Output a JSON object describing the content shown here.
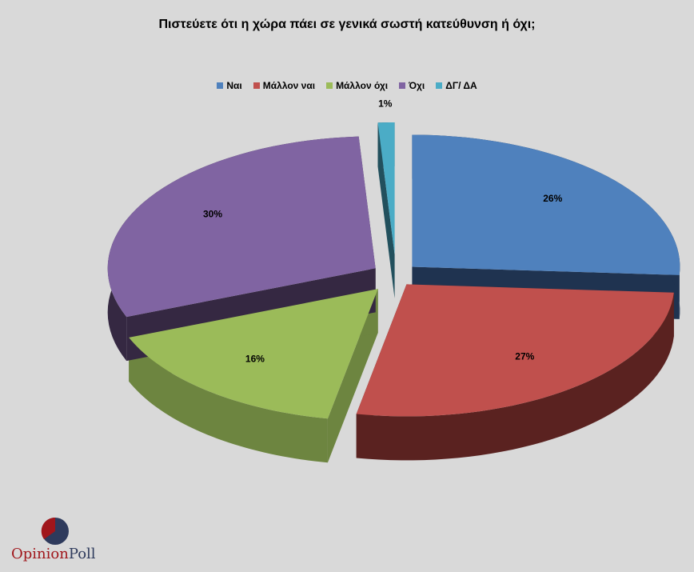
{
  "chart_data": {
    "type": "pie",
    "title": "Πιστεύετε ότι η χώρα πάει σε γενικά σωστή κατεύθυνση ή όχι;",
    "categories": [
      "Ναι",
      "Μάλλον ναι",
      "Μάλλον όχι",
      "Όχι",
      "ΔΓ/ ΔΑ"
    ],
    "values": [
      26,
      27,
      16,
      30,
      1
    ],
    "labels": [
      "26%",
      "27%",
      "16%",
      "30%",
      "1%"
    ],
    "colors": [
      "#4f81bd",
      "#c0504d",
      "#9bbb59",
      "#8064a2",
      "#4bacc6"
    ],
    "side_colors": [
      "#1f3350",
      "#5a2220",
      "#6d8540",
      "#352842",
      "#22505d"
    ],
    "legend_position": "top",
    "style": "3d-exploded"
  },
  "logo": {
    "part1": "Opinion",
    "part2": "Poll",
    "color1": "#a0161b",
    "color2": "#2e3a5c"
  }
}
